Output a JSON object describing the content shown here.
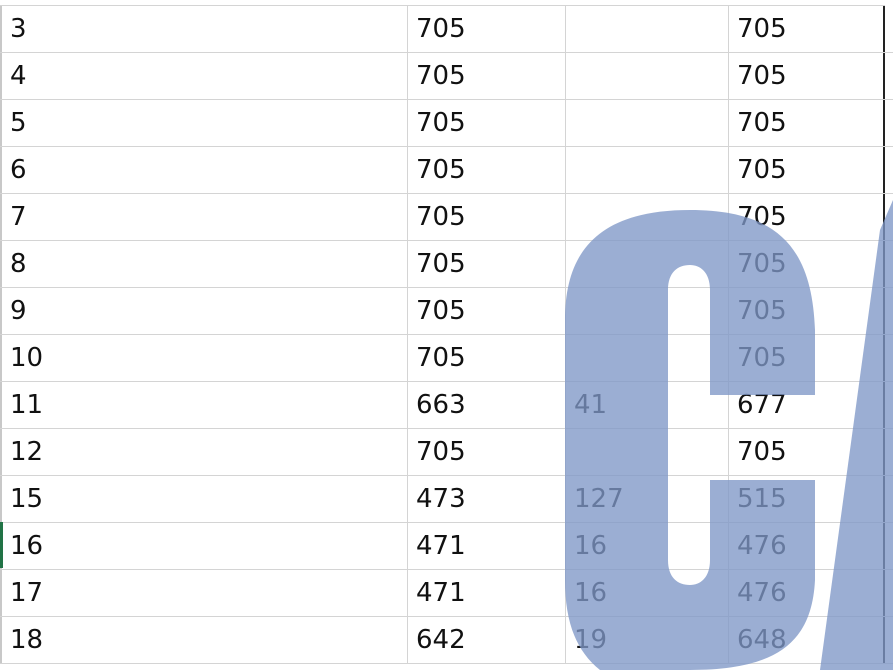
{
  "sheet": {
    "rows": [
      [
        "3",
        "705",
        "",
        "705"
      ],
      [
        "4",
        "705",
        "",
        "705"
      ],
      [
        "5",
        "705",
        "",
        "705"
      ],
      [
        "6",
        "705",
        "",
        "705"
      ],
      [
        "7",
        "705",
        "",
        "705"
      ],
      [
        "8",
        "705",
        "",
        "705"
      ],
      [
        "9",
        "705",
        "",
        "705"
      ],
      [
        "10",
        "705",
        "",
        "705"
      ],
      [
        "11",
        "663",
        "41",
        "677"
      ],
      [
        "12",
        "705",
        "",
        "705"
      ],
      [
        "15",
        "473",
        "127",
        "515"
      ],
      [
        "16",
        "471",
        "16",
        "476"
      ],
      [
        "17",
        "471",
        "16",
        "476"
      ],
      [
        "18",
        "642",
        "19",
        "648"
      ]
    ]
  },
  "watermark": {
    "color": "#7f97c7"
  }
}
